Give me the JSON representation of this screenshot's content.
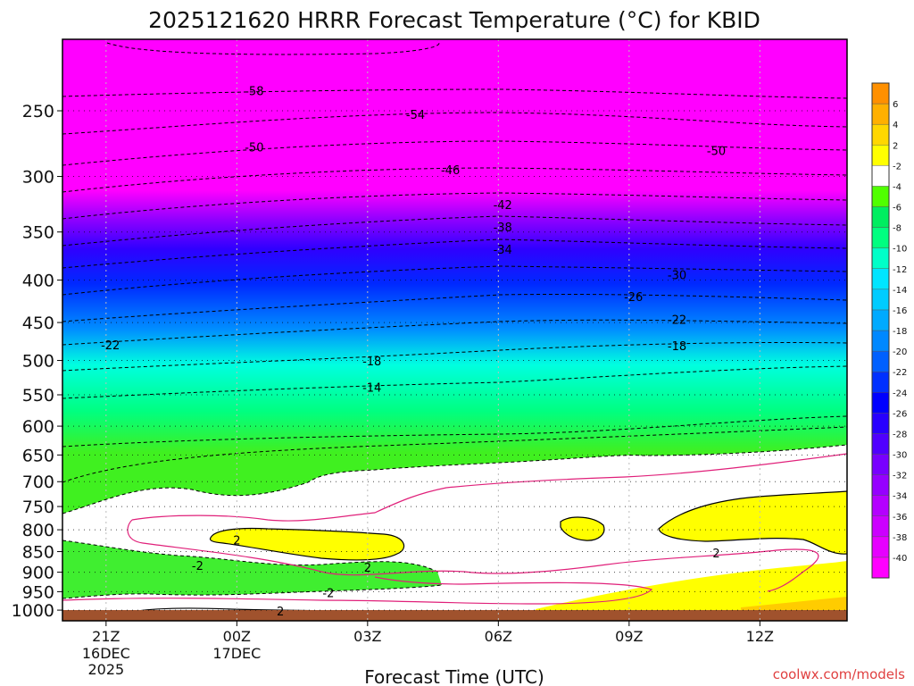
{
  "chart_data": {
    "type": "heatmap",
    "title": "2025121620 HRRR Forecast Temperature (°C) for KBID",
    "xlabel": "Forecast Time (UTC)",
    "ylabel": "",
    "credit": "coolwx.com/models",
    "y_axis": {
      "scale": "log",
      "direction": "pressure-inverted",
      "ylim": [
        1030,
        205
      ],
      "ticks": [
        250,
        300,
        350,
        400,
        450,
        500,
        550,
        600,
        650,
        700,
        750,
        800,
        850,
        900,
        950,
        1000
      ],
      "tick_labels": [
        "250",
        "300",
        "350",
        "400",
        "450",
        "500",
        "550",
        "600",
        "650",
        "700",
        "750",
        "800",
        "850",
        "900",
        "950",
        "1000"
      ]
    },
    "x_axis": {
      "xlim": [
        20,
        38
      ],
      "ticks": [
        {
          "hour": 21,
          "label": "21Z",
          "sub1": "16DEC",
          "sub2": "2025"
        },
        {
          "hour": 24,
          "label": "00Z",
          "sub1": "17DEC",
          "sub2": ""
        },
        {
          "hour": 27,
          "label": "03Z",
          "sub1": "",
          "sub2": ""
        },
        {
          "hour": 30,
          "label": "06Z",
          "sub1": "",
          "sub2": ""
        },
        {
          "hour": 33,
          "label": "09Z",
          "sub1": "",
          "sub2": ""
        },
        {
          "hour": 36,
          "label": "12Z",
          "sub1": "",
          "sub2": ""
        }
      ],
      "gridlines": true
    },
    "colorbar": {
      "levels": [
        -40,
        -38,
        -36,
        -34,
        -32,
        -30,
        -28,
        -26,
        -24,
        -22,
        -20,
        -18,
        -16,
        -14,
        -12,
        -10,
        -8,
        -6,
        -4,
        -2,
        2,
        4,
        6
      ],
      "colors": [
        "#ff00ff",
        "#e600ff",
        "#cc00ff",
        "#b400ff",
        "#9600ff",
        "#7800ff",
        "#5000ff",
        "#2800ff",
        "#0000ff",
        "#0030ff",
        "#0060ff",
        "#0088ff",
        "#00aaff",
        "#00ccff",
        "#00e5ff",
        "#00ffc8",
        "#00ff80",
        "#00ee60",
        "#50ff00",
        "#ffffff",
        "#ffff00",
        "#ffd700",
        "#ffb000",
        "#ff9000"
      ],
      "tick_labels": [
        "-40",
        "-38",
        "-36",
        "-34",
        "-32",
        "-30",
        "-28",
        "-26",
        "-24",
        "-22",
        "-20",
        "-18",
        "-16",
        "-14",
        "-12",
        "-10",
        "-8",
        "-6",
        "-4",
        "-2",
        "2",
        "4",
        "6"
      ]
    },
    "temperature_profile": {
      "pressure": [
        205,
        250,
        300,
        350,
        400,
        450,
        500,
        550,
        600,
        650,
        700,
        750,
        800,
        850,
        900,
        950,
        1000,
        1030
      ],
      "temp_at_00Z": [
        -62,
        -58,
        -48,
        -36,
        -30,
        -24,
        -19,
        -14,
        -10,
        -6,
        -3,
        0,
        0,
        2,
        -2,
        -1,
        1,
        2
      ]
    },
    "contour_labels": [
      {
        "text": "-58",
        "hour": 24.4,
        "p": 237
      },
      {
        "text": "-54",
        "hour": 28.1,
        "p": 253
      },
      {
        "text": "-50",
        "hour": 24.4,
        "p": 277
      },
      {
        "text": "-50",
        "hour": 35.0,
        "p": 280
      },
      {
        "text": "-46",
        "hour": 28.9,
        "p": 295
      },
      {
        "text": "-42",
        "hour": 30.1,
        "p": 325
      },
      {
        "text": "-38",
        "hour": 30.1,
        "p": 346
      },
      {
        "text": "-34",
        "hour": 30.1,
        "p": 368
      },
      {
        "text": "-30",
        "hour": 34.1,
        "p": 395
      },
      {
        "text": "-26",
        "hour": 33.1,
        "p": 420
      },
      {
        "text": "-22",
        "hour": 34.1,
        "p": 447
      },
      {
        "text": "-22",
        "hour": 21.1,
        "p": 480
      },
      {
        "text": "-18",
        "hour": 34.1,
        "p": 481
      },
      {
        "text": "-18",
        "hour": 27.1,
        "p": 502
      },
      {
        "text": "-14",
        "hour": 27.1,
        "p": 540
      },
      {
        "text": "2",
        "hour": 24.0,
        "p": 825
      },
      {
        "text": "2",
        "hour": 27.0,
        "p": 890
      },
      {
        "text": "2",
        "hour": 35.0,
        "p": 855
      },
      {
        "text": "-2",
        "hour": 23.1,
        "p": 885
      },
      {
        "text": "-2",
        "hour": 26.1,
        "p": 955
      },
      {
        "text": "2",
        "hour": 25.0,
        "p": 1005
      }
    ]
  }
}
